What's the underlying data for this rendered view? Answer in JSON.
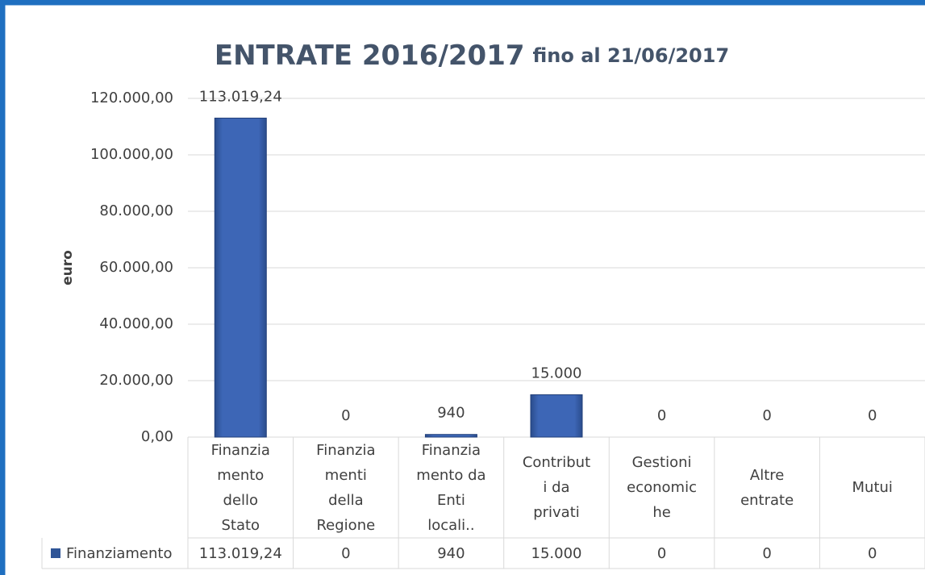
{
  "chart_data": {
    "type": "bar",
    "title": "ENTRATE 2016/2017",
    "subtitle": "fino al 21/06/2017",
    "y_label": "euro",
    "categories": [
      "Finanzia\nmento\ndello\nStato",
      "Finanzia\nmenti\ndella\nRegione",
      "Finanzia\nmento da\nEnti\nlocali..",
      "Contribut\ni da\nprivati",
      "Gestioni\neconomic\nhe",
      "Altre\nentrate",
      "Mutui"
    ],
    "series": [
      {
        "name": "Finanziamento",
        "color": "#2f5597",
        "values": [
          113019.24,
          0,
          940,
          15000,
          0,
          0,
          0
        ],
        "value_labels": [
          "113.019,24",
          "0",
          "940",
          "15.000",
          "0",
          "0",
          "0"
        ]
      }
    ],
    "ylim": [
      0,
      120000
    ],
    "yticks": [
      {
        "value": 0,
        "label": "0,00"
      },
      {
        "value": 20000,
        "label": "20.000,00"
      },
      {
        "value": 40000,
        "label": "40.000,00"
      },
      {
        "value": 60000,
        "label": "60.000,00"
      },
      {
        "value": 80000,
        "label": "80.000,00"
      },
      {
        "value": 100000,
        "label": "100.000,00"
      },
      {
        "value": 120000,
        "label": "120.000,00"
      }
    ],
    "grid": true
  }
}
